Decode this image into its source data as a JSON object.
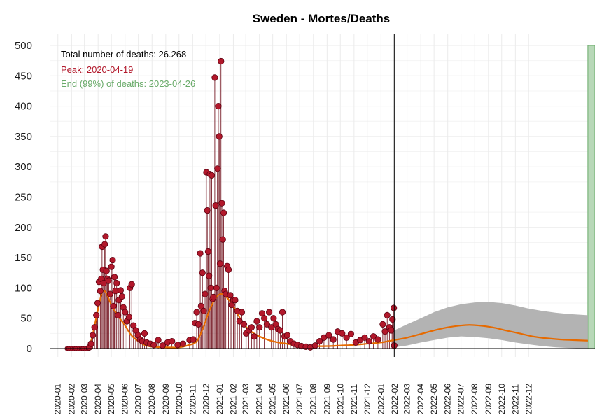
{
  "chart_data": {
    "type": "line",
    "title": "Sweden - Mortes/Deaths",
    "xlabel": "",
    "ylabel": "",
    "ylim": [
      0,
      500
    ],
    "yticks": [
      0,
      50,
      100,
      150,
      200,
      250,
      300,
      350,
      400,
      450,
      500
    ],
    "xlim": [
      "2019-12-15",
      "2023-04-30"
    ],
    "x_tick_labels": [
      "2020-01",
      "2020-02",
      "2020-03",
      "2020-04",
      "2020-05",
      "2020-06",
      "2020-07",
      "2020-08",
      "2020-09",
      "2020-10",
      "2020-11",
      "2020-12",
      "2021-01",
      "2021-02",
      "2021-03",
      "2021-04",
      "2021-05",
      "2021-06",
      "2021-07",
      "2021-08",
      "2021-09",
      "2021-10",
      "2021-11",
      "2021-12",
      "2022-01",
      "2022-02",
      "2022-03",
      "2022-04",
      "2022-05",
      "2022-06",
      "2022-07",
      "2022-08",
      "2022-09",
      "2022-10",
      "2022-11",
      "2022-12"
    ],
    "grid": true,
    "annotations": {
      "total": "Total number of deaths: 26.268",
      "peak": "Peak: 2020-04-19",
      "end": "End (99%) of deaths: 2023-04-26"
    },
    "today_line": "2022-01-31",
    "end_band": [
      "2023-04-14",
      "2023-04-30"
    ],
    "colors": {
      "observed": "#b2182b",
      "observed_stem": "#67000d",
      "fit": "#e66a00",
      "forecast_band": "#b3b3b3",
      "end_band": "#b8d8b8",
      "end_band_edge": "#6aab6a",
      "total_text": "#000000",
      "peak_text": "#b2182b",
      "end_text": "#6aab6a"
    },
    "series": [
      {
        "points": [
          [
            "2020-03-12",
            2
          ],
          [
            "2020-03-16",
            8
          ],
          [
            "2020-03-20",
            22
          ],
          [
            "2020-03-24",
            35
          ],
          [
            "2020-03-28",
            55
          ],
          [
            "2020-03-31",
            75
          ],
          [
            "2020-04-03",
            110
          ],
          [
            "2020-04-06",
            95
          ],
          [
            "2020-04-08",
            115
          ],
          [
            "2020-04-10",
            168
          ],
          [
            "2020-04-12",
            130
          ],
          [
            "2020-04-14",
            108
          ],
          [
            "2020-04-16",
            172
          ],
          [
            "2020-04-18",
            185
          ],
          [
            "2020-04-20",
            128
          ],
          [
            "2020-04-22",
            115
          ],
          [
            "2020-04-25",
            112
          ],
          [
            "2020-04-28",
            90
          ],
          [
            "2020-05-01",
            135
          ],
          [
            "2020-05-04",
            146
          ],
          [
            "2020-05-06",
            70
          ],
          [
            "2020-05-08",
            118
          ],
          [
            "2020-05-10",
            95
          ],
          [
            "2020-05-13",
            108
          ],
          [
            "2020-05-16",
            55
          ],
          [
            "2020-05-18",
            80
          ],
          [
            "2020-05-22",
            96
          ],
          [
            "2020-05-25",
            86
          ],
          [
            "2020-05-28",
            68
          ],
          [
            "2020-06-01",
            60
          ],
          [
            "2020-06-05",
            45
          ],
          [
            "2020-06-10",
            52
          ],
          [
            "2020-06-12",
            100
          ],
          [
            "2020-06-16",
            106
          ],
          [
            "2020-06-20",
            38
          ],
          [
            "2020-06-25",
            30
          ],
          [
            "2020-06-30",
            22
          ],
          [
            "2020-07-05",
            15
          ],
          [
            "2020-07-10",
            12
          ],
          [
            "2020-07-15",
            25
          ],
          [
            "2020-07-20",
            10
          ],
          [
            "2020-07-28",
            8
          ],
          [
            "2020-08-05",
            6
          ],
          [
            "2020-08-15",
            14
          ],
          [
            "2020-08-25",
            5
          ],
          [
            "2020-09-05",
            10
          ],
          [
            "2020-09-15",
            12
          ],
          [
            "2020-09-28",
            6
          ],
          [
            "2020-10-10",
            8
          ],
          [
            "2020-10-25",
            14
          ],
          [
            "2020-11-02",
            15
          ],
          [
            "2020-11-06",
            42
          ],
          [
            "2020-11-10",
            60
          ],
          [
            "2020-11-14",
            40
          ],
          [
            "2020-11-18",
            157
          ],
          [
            "2020-11-20",
            70
          ],
          [
            "2020-11-23",
            125
          ],
          [
            "2020-11-26",
            62
          ],
          [
            "2020-11-29",
            90
          ],
          [
            "2020-12-02",
            291
          ],
          [
            "2020-12-04",
            228
          ],
          [
            "2020-12-06",
            160
          ],
          [
            "2020-12-08",
            120
          ],
          [
            "2020-12-10",
            288
          ],
          [
            "2020-12-12",
            100
          ],
          [
            "2020-12-14",
            286
          ],
          [
            "2020-12-16",
            82
          ],
          [
            "2020-12-18",
            85
          ],
          [
            "2020-12-21",
            447
          ],
          [
            "2020-12-23",
            236
          ],
          [
            "2020-12-25",
            100
          ],
          [
            "2020-12-27",
            297
          ],
          [
            "2020-12-29",
            400
          ],
          [
            "2020-12-31",
            350
          ],
          [
            "2021-01-02",
            140
          ],
          [
            "2021-01-04",
            474
          ],
          [
            "2021-01-06",
            240
          ],
          [
            "2021-01-08",
            180
          ],
          [
            "2021-01-10",
            224
          ],
          [
            "2021-01-12",
            95
          ],
          [
            "2021-01-15",
            90
          ],
          [
            "2021-01-18",
            136
          ],
          [
            "2021-01-21",
            130
          ],
          [
            "2021-01-25",
            88
          ],
          [
            "2021-01-28",
            72
          ],
          [
            "2021-02-01",
            80
          ],
          [
            "2021-02-05",
            80
          ],
          [
            "2021-02-10",
            62
          ],
          [
            "2021-02-15",
            45
          ],
          [
            "2021-02-20",
            60
          ],
          [
            "2021-02-25",
            40
          ],
          [
            "2021-03-02",
            25
          ],
          [
            "2021-03-08",
            30
          ],
          [
            "2021-03-14",
            35
          ],
          [
            "2021-03-20",
            20
          ],
          [
            "2021-03-26",
            45
          ],
          [
            "2021-04-01",
            35
          ],
          [
            "2021-04-07",
            58
          ],
          [
            "2021-04-12",
            50
          ],
          [
            "2021-04-18",
            40
          ],
          [
            "2021-04-23",
            60
          ],
          [
            "2021-04-28",
            35
          ],
          [
            "2021-05-03",
            50
          ],
          [
            "2021-05-08",
            40
          ],
          [
            "2021-05-13",
            32
          ],
          [
            "2021-05-18",
            30
          ],
          [
            "2021-05-23",
            60
          ],
          [
            "2021-05-28",
            20
          ],
          [
            "2021-06-03",
            22
          ],
          [
            "2021-06-10",
            12
          ],
          [
            "2021-06-18",
            8
          ],
          [
            "2021-06-26",
            6
          ],
          [
            "2021-07-05",
            4
          ],
          [
            "2021-07-15",
            3
          ],
          [
            "2021-07-25",
            2
          ],
          [
            "2021-08-05",
            5
          ],
          [
            "2021-08-15",
            12
          ],
          [
            "2021-08-25",
            18
          ],
          [
            "2021-09-05",
            22
          ],
          [
            "2021-09-15",
            15
          ],
          [
            "2021-09-25",
            28
          ],
          [
            "2021-10-05",
            25
          ],
          [
            "2021-10-15",
            18
          ],
          [
            "2021-10-25",
            24
          ],
          [
            "2021-11-05",
            10
          ],
          [
            "2021-11-15",
            14
          ],
          [
            "2021-11-25",
            18
          ],
          [
            "2021-12-05",
            12
          ],
          [
            "2021-12-15",
            20
          ],
          [
            "2021-12-25",
            15
          ],
          [
            "2022-01-05",
            40
          ],
          [
            "2022-01-10",
            28
          ],
          [
            "2022-01-15",
            55
          ],
          [
            "2022-01-20",
            35
          ],
          [
            "2022-01-24",
            30
          ],
          [
            "2022-01-27",
            48
          ],
          [
            "2022-01-30",
            67
          ],
          [
            "2022-01-31",
            5
          ]
        ]
      },
      {
        "points": [
          [
            "2020-03-01",
            0
          ],
          [
            "2020-03-15",
            10
          ],
          [
            "2020-03-29",
            55
          ],
          [
            "2020-04-08",
            88
          ],
          [
            "2020-04-12",
            95
          ],
          [
            "2020-04-19",
            92
          ],
          [
            "2020-05-01",
            72
          ],
          [
            "2020-05-15",
            55
          ],
          [
            "2020-06-01",
            38
          ],
          [
            "2020-06-15",
            22
          ],
          [
            "2020-07-01",
            12
          ],
          [
            "2020-07-15",
            6
          ],
          [
            "2020-08-01",
            3
          ],
          [
            "2020-09-01",
            2
          ],
          [
            "2020-10-01",
            2
          ],
          [
            "2020-10-20",
            5
          ],
          [
            "2020-11-10",
            12
          ],
          [
            "2020-11-25",
            35
          ],
          [
            "2020-12-10",
            65
          ],
          [
            "2020-12-25",
            85
          ],
          [
            "2021-01-06",
            90
          ],
          [
            "2021-01-20",
            82
          ],
          [
            "2021-02-05",
            65
          ],
          [
            "2021-02-20",
            45
          ],
          [
            "2021-03-10",
            30
          ],
          [
            "2021-04-01",
            20
          ],
          [
            "2021-05-01",
            12
          ],
          [
            "2021-06-01",
            8
          ],
          [
            "2021-07-01",
            5
          ],
          [
            "2021-08-01",
            4
          ],
          [
            "2021-09-01",
            4
          ],
          [
            "2021-10-01",
            5
          ],
          [
            "2021-11-01",
            6
          ],
          [
            "2021-12-01",
            8
          ],
          [
            "2022-01-01",
            10
          ],
          [
            "2022-01-31",
            14
          ],
          [
            "2022-03-01",
            18
          ],
          [
            "2022-04-01",
            24
          ],
          [
            "2022-05-01",
            30
          ],
          [
            "2022-06-01",
            35
          ],
          [
            "2022-07-01",
            38
          ],
          [
            "2022-07-20",
            39
          ],
          [
            "2022-08-10",
            38
          ],
          [
            "2022-09-10",
            35
          ],
          [
            "2022-10-10",
            30
          ],
          [
            "2022-11-10",
            25
          ],
          [
            "2022-12-10",
            20
          ],
          [
            "2023-01-10",
            17
          ],
          [
            "2023-02-10",
            15
          ],
          [
            "2023-03-10",
            14
          ],
          [
            "2023-04-14",
            13
          ]
        ]
      },
      {
        "upper": [
          [
            "2022-01-31",
            30
          ],
          [
            "2022-03-01",
            40
          ],
          [
            "2022-04-01",
            50
          ],
          [
            "2022-05-01",
            60
          ],
          [
            "2022-06-01",
            68
          ],
          [
            "2022-07-01",
            73
          ],
          [
            "2022-08-01",
            76
          ],
          [
            "2022-09-01",
            77
          ],
          [
            "2022-10-01",
            75
          ],
          [
            "2022-11-01",
            71
          ],
          [
            "2022-12-01",
            66
          ],
          [
            "2023-01-01",
            62
          ],
          [
            "2023-02-01",
            59
          ],
          [
            "2023-03-01",
            57
          ],
          [
            "2023-04-14",
            55
          ]
        ],
        "lower": [
          [
            "2022-01-31",
            2
          ],
          [
            "2022-03-01",
            5
          ],
          [
            "2022-04-01",
            10
          ],
          [
            "2022-05-01",
            14
          ],
          [
            "2022-06-01",
            18
          ],
          [
            "2022-07-01",
            20
          ],
          [
            "2022-08-01",
            19
          ],
          [
            "2022-09-01",
            17
          ],
          [
            "2022-10-01",
            14
          ],
          [
            "2022-11-01",
            10
          ],
          [
            "2022-12-01",
            7
          ],
          [
            "2023-01-01",
            4
          ],
          [
            "2023-02-01",
            2
          ],
          [
            "2023-03-01",
            1
          ],
          [
            "2023-04-14",
            0
          ]
        ]
      }
    ]
  }
}
